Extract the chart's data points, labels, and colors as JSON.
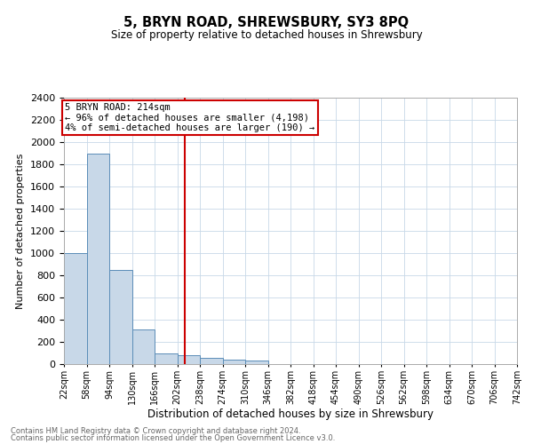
{
  "title": "5, BRYN ROAD, SHREWSBURY, SY3 8PQ",
  "subtitle": "Size of property relative to detached houses in Shrewsbury",
  "xlabel": "Distribution of detached houses by size in Shrewsbury",
  "ylabel": "Number of detached properties",
  "footnote1": "Contains HM Land Registry data © Crown copyright and database right 2024.",
  "footnote2": "Contains public sector information licensed under the Open Government Licence v3.0.",
  "bin_edges": [
    22,
    58,
    94,
    130,
    166,
    202,
    238,
    274,
    310,
    346,
    382,
    418,
    454,
    490,
    526,
    562,
    598,
    634,
    670,
    706,
    742
  ],
  "bin_labels": [
    "22sqm",
    "58sqm",
    "94sqm",
    "130sqm",
    "166sqm",
    "202sqm",
    "238sqm",
    "274sqm",
    "310sqm",
    "346sqm",
    "382sqm",
    "418sqm",
    "454sqm",
    "490sqm",
    "526sqm",
    "562sqm",
    "598sqm",
    "634sqm",
    "670sqm",
    "706sqm",
    "742sqm"
  ],
  "counts": [
    1000,
    1900,
    850,
    310,
    100,
    80,
    55,
    40,
    30,
    0,
    0,
    0,
    0,
    0,
    0,
    0,
    0,
    0,
    0,
    0
  ],
  "ylim": [
    0,
    2400
  ],
  "yticks": [
    0,
    200,
    400,
    600,
    800,
    1000,
    1200,
    1400,
    1600,
    1800,
    2000,
    2200,
    2400
  ],
  "property_size": 214,
  "property_line_color": "#cc0000",
  "bar_color": "#c8d8e8",
  "bar_edge_color": "#5b8db8",
  "annotation_text": "5 BRYN ROAD: 214sqm\n← 96% of detached houses are smaller (4,198)\n4% of semi-detached houses are larger (190) →",
  "annotation_box_color": "#ffffff",
  "annotation_box_edge_color": "#cc0000",
  "background_color": "#ffffff",
  "grid_color": "#c8d8e8"
}
